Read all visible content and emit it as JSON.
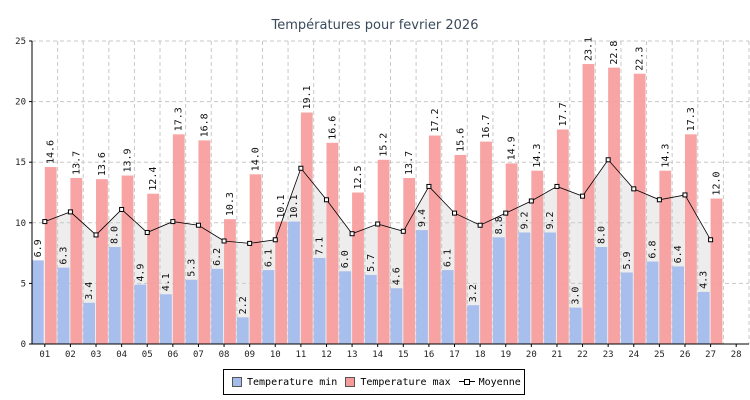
{
  "chart_data": {
    "type": "bar",
    "title": "Températures pour fevrier 2026",
    "categories": [
      "01",
      "02",
      "03",
      "04",
      "05",
      "06",
      "07",
      "08",
      "09",
      "10",
      "11",
      "12",
      "13",
      "14",
      "15",
      "16",
      "17",
      "18",
      "19",
      "20",
      "21",
      "22",
      "23",
      "24",
      "25",
      "26",
      "27",
      "28"
    ],
    "series": [
      {
        "name": "Temperature min",
        "values": [
          6.9,
          6.3,
          3.4,
          8.0,
          4.9,
          4.1,
          5.3,
          6.2,
          2.2,
          6.1,
          10.1,
          7.1,
          6.0,
          5.7,
          4.6,
          9.4,
          6.1,
          3.2,
          8.8,
          9.2,
          9.2,
          3.0,
          8.0,
          5.9,
          6.8,
          6.4,
          4.3,
          null
        ]
      },
      {
        "name": "Temperature max",
        "values": [
          14.6,
          13.7,
          13.6,
          13.9,
          12.4,
          17.3,
          16.8,
          10.3,
          14.0,
          10.1,
          19.1,
          16.6,
          12.5,
          15.2,
          13.7,
          17.2,
          15.6,
          16.7,
          14.9,
          14.3,
          17.7,
          23.1,
          22.8,
          22.3,
          14.3,
          17.3,
          12.0,
          null
        ]
      },
      {
        "name": "Moyenne",
        "values": [
          10.1,
          10.9,
          9.0,
          11.1,
          9.2,
          10.1,
          9.8,
          8.5,
          8.3,
          8.6,
          14.5,
          11.9,
          9.1,
          9.9,
          9.3,
          13.0,
          10.8,
          9.8,
          10.8,
          11.8,
          13.0,
          12.2,
          15.2,
          12.8,
          11.9,
          12.3,
          8.6,
          null
        ]
      }
    ],
    "ylim": [
      0,
      25
    ],
    "yticks": [
      0,
      5,
      10,
      15,
      20,
      25
    ],
    "grid": true,
    "legend_position": "bottom",
    "colors": {
      "min": "#a4bcec",
      "max": "#f79a9a",
      "moyenne_line": "#000000",
      "band": "#cccccc"
    }
  },
  "legend": {
    "min_label": "Temperature min",
    "max_label": "Temperature max",
    "avg_label": "Moyenne"
  }
}
